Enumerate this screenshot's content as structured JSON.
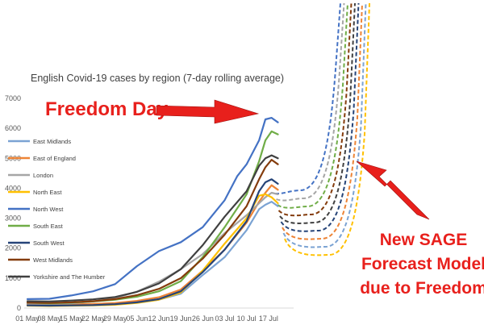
{
  "chart_data": {
    "type": "line",
    "title": "English Covid-19 cases by region (7-day rolling average)",
    "xlabel": "",
    "ylabel": "",
    "ylim": [
      0,
      7000
    ],
    "yticks": [
      "0",
      "1000",
      "2000",
      "3000",
      "4000",
      "5000",
      "6000",
      "7000"
    ],
    "xticks": [
      "01 May",
      "08 May",
      "15 May",
      "22 May",
      "29 May",
      "05 Jun",
      "12 Jun",
      "19 Jun",
      "26 Jun",
      "03 Jul",
      "10 Jul",
      "17 Jul"
    ],
    "grid": false,
    "legend_position": "left",
    "x_day_unit": "days from 01 May",
    "series": [
      {
        "name": "East Midlands",
        "color": "#7ba3d3",
        "x": [
          0,
          7,
          14,
          21,
          28,
          35,
          42,
          49,
          56,
          63,
          70,
          74,
          76,
          78,
          80
        ],
        "y": [
          120,
          110,
          115,
          125,
          140,
          180,
          280,
          480,
          1100,
          1700,
          2600,
          3300,
          3450,
          3550,
          3400
        ]
      },
      {
        "name": "East of England",
        "color": "#ed8436",
        "x": [
          0,
          7,
          14,
          21,
          28,
          35,
          42,
          49,
          56,
          63,
          70,
          74,
          76,
          78,
          80
        ],
        "y": [
          130,
          120,
          125,
          140,
          170,
          240,
          360,
          620,
          1250,
          1950,
          2850,
          3550,
          3850,
          4100,
          3950
        ]
      },
      {
        "name": "London",
        "color": "#a6a6a6",
        "x": [
          0,
          7,
          14,
          21,
          28,
          35,
          42,
          49,
          56,
          63,
          70,
          74,
          76,
          78,
          80
        ],
        "y": [
          150,
          140,
          160,
          220,
          330,
          550,
          880,
          1300,
          1800,
          2500,
          3100,
          3500,
          3700,
          3850,
          3800
        ]
      },
      {
        "name": "North East",
        "color": "#ffc000",
        "x": [
          0,
          7,
          14,
          21,
          28,
          35,
          42,
          49,
          56,
          63,
          70,
          74,
          76,
          78,
          80
        ],
        "y": [
          80,
          70,
          80,
          90,
          110,
          170,
          280,
          520,
          1250,
          2150,
          3000,
          3750,
          3800,
          3700,
          3500
        ]
      },
      {
        "name": "North West",
        "color": "#4472c4",
        "x": [
          0,
          7,
          14,
          21,
          28,
          35,
          42,
          49,
          56,
          63,
          67,
          70,
          74,
          76,
          78,
          80
        ],
        "y": [
          300,
          310,
          420,
          560,
          800,
          1400,
          1900,
          2200,
          2700,
          3600,
          4400,
          4800,
          5600,
          6300,
          6350,
          6200
        ]
      },
      {
        "name": "South East",
        "color": "#70ad47",
        "x": [
          0,
          7,
          14,
          21,
          28,
          35,
          42,
          49,
          56,
          63,
          70,
          74,
          76,
          78,
          80
        ],
        "y": [
          180,
          160,
          180,
          220,
          280,
          380,
          560,
          900,
          1700,
          2700,
          3800,
          4900,
          5600,
          5900,
          5800
        ]
      },
      {
        "name": "South West",
        "color": "#264478",
        "x": [
          0,
          7,
          14,
          21,
          28,
          35,
          42,
          49,
          56,
          63,
          70,
          74,
          76,
          78,
          80
        ],
        "y": [
          90,
          80,
          90,
          100,
          130,
          190,
          300,
          560,
          1200,
          1950,
          2900,
          3900,
          4200,
          4300,
          4150
        ]
      },
      {
        "name": "West Midlands",
        "color": "#843c0c",
        "x": [
          0,
          7,
          14,
          21,
          28,
          35,
          42,
          49,
          56,
          63,
          70,
          74,
          76,
          78,
          80
        ],
        "y": [
          180,
          170,
          190,
          230,
          300,
          430,
          640,
          1000,
          1650,
          2450,
          3400,
          4300,
          4700,
          4950,
          4800
        ]
      },
      {
        "name": "Yorkshire and The Humber",
        "color": "#404040",
        "x": [
          0,
          7,
          14,
          21,
          28,
          35,
          42,
          49,
          56,
          63,
          70,
          74,
          76,
          78,
          80
        ],
        "y": [
          230,
          220,
          250,
          290,
          370,
          540,
          820,
          1300,
          2100,
          3050,
          3900,
          4750,
          5000,
          5100,
          5000
        ]
      }
    ],
    "forecast_colors": [
      "#4472c4",
      "#a6a6a6",
      "#70ad47",
      "#843c0c",
      "#404040",
      "#264478",
      "#ed8436",
      "#7ba3d3",
      "#ffc000"
    ],
    "forecast_style": "dashed"
  },
  "annotations": {
    "freedom_day": "Freedom Day",
    "sage_line1": "New SAGE",
    "sage_line2": "Forecast Model",
    "sage_line3": "due to Freedom"
  },
  "colors": {
    "annotation_red": "#e8201c"
  }
}
